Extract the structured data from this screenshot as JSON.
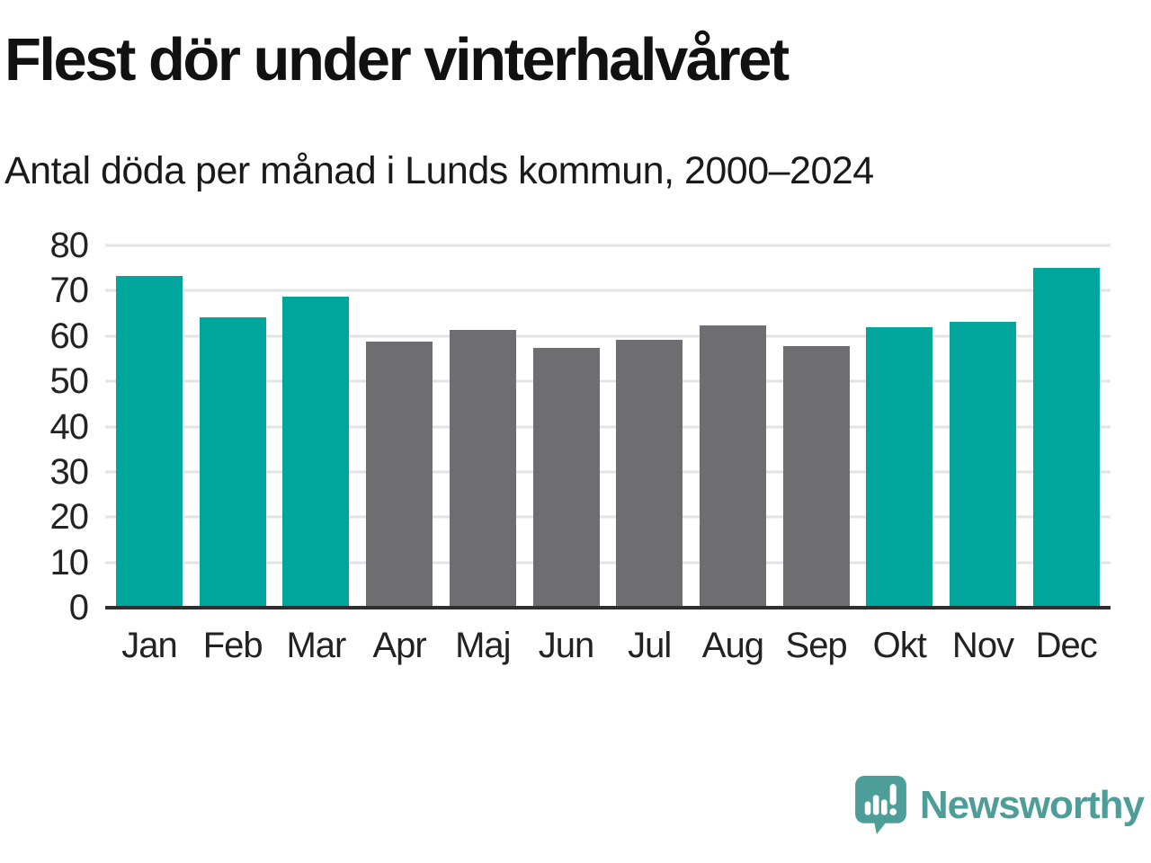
{
  "header": {
    "title": "Flest dör under vinterhalvåret",
    "subtitle": "Antal döda per månad i Lunds kommun, 2000–2024"
  },
  "chart_data": {
    "type": "bar",
    "title": "Flest dör under vinterhalvåret",
    "subtitle": "Antal döda per månad i Lunds kommun, 2000–2024",
    "categories": [
      "Jan",
      "Feb",
      "Mar",
      "Apr",
      "Maj",
      "Jun",
      "Jul",
      "Aug",
      "Sep",
      "Okt",
      "Nov",
      "Dec"
    ],
    "values": [
      73.3,
      64.2,
      68.6,
      58.8,
      61.4,
      57.4,
      59.2,
      62.3,
      57.8,
      61.9,
      63.1,
      75.1
    ],
    "xlabel": "",
    "ylabel": "",
    "ylim": [
      0,
      80
    ],
    "yticks": [
      0,
      10,
      20,
      30,
      40,
      50,
      60,
      70,
      80
    ],
    "grid": true,
    "legend_position": "none",
    "highlight_months": [
      "Jan",
      "Feb",
      "Mar",
      "Okt",
      "Nov",
      "Dec"
    ],
    "colors": {
      "highlight": "#00a59b",
      "default": "#6e6e72",
      "gridline": "#e3e3e3",
      "axis": "#2e2e2e",
      "tick_label": "#222222"
    }
  },
  "footer": {
    "brand": "Newsworthy",
    "brand_color": "#4d9e98",
    "logo_icon": "newsworthy-chart-bubble-icon"
  }
}
